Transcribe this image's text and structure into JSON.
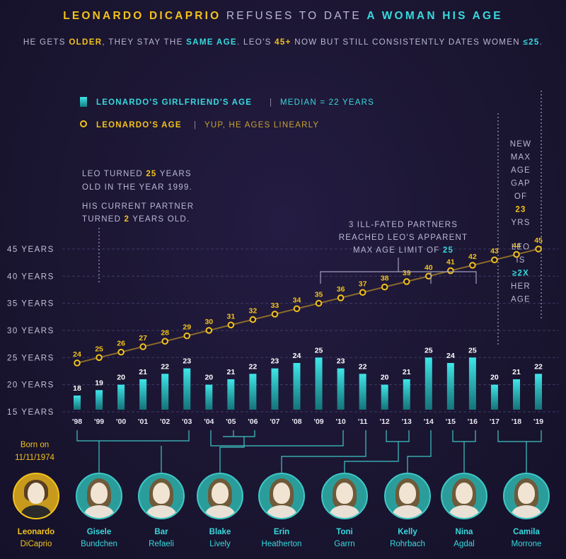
{
  "title": {
    "part1": "LEONARDO DICAPRIO",
    "part2": "REFUSES TO DATE",
    "part3": "A WOMAN HIS AGE"
  },
  "subtitle": {
    "a": "HE GETS ",
    "b": "OLDER",
    "c": ", THEY STAY THE ",
    "d": "SAME AGE",
    "e": ". LEO'S ",
    "f": "45+",
    "g": " NOW BUT STILL CONSISTENTLY DATES WOMEN ",
    "h": "≤25",
    "i": "."
  },
  "legend": {
    "gf_label": "LEONARDO'S GIRLFRIEND'S AGE",
    "gf_note": "MEDIAN = 22 YEARS",
    "leo_label": "LEONARDO'S AGE",
    "leo_note": "YUP, HE AGES LINEARLY",
    "sep": "|"
  },
  "notes": {
    "left_l1a": "LEO TURNED ",
    "left_l1b": "25",
    "left_l1c": " YEARS",
    "left_l2": "OLD IN THE YEAR 1999.",
    "left_l3": "HIS CURRENT PARTNER",
    "left_l4a": "TURNED ",
    "left_l4b": "2",
    "left_l4c": " YEARS OLD.",
    "mid_l1": "3 ILL-FATED PARTNERS",
    "mid_l2": "REACHED LEO'S APPARENT",
    "mid_l3a": "MAX AGE LIMIT OF ",
    "mid_l3b": "25",
    "right": [
      "NEW",
      "MAX",
      "AGE",
      "GAP",
      "OF"
    ],
    "right_num": "23",
    "right_yrs": "YRS",
    "right2": [
      "LEO",
      "IS"
    ],
    "right2_hl": "≥2X",
    "right2_end": [
      "HER",
      "AGE"
    ]
  },
  "people": [
    {
      "first": "Leonardo",
      "last": "DiCaprio",
      "icon": "leonardo-portrait"
    },
    {
      "first": "Gisele",
      "last": "Bundchen",
      "icon": "gisele-portrait"
    },
    {
      "first": "Bar",
      "last": "Refaeli",
      "icon": "bar-portrait"
    },
    {
      "first": "Blake",
      "last": "Lively",
      "icon": "blake-portrait"
    },
    {
      "first": "Erin",
      "last": "Heatherton",
      "icon": "erin-portrait"
    },
    {
      "first": "Toni",
      "last": "Garrn",
      "icon": "toni-portrait"
    },
    {
      "first": "Kelly",
      "last": "Rohrbach",
      "icon": "kelly-portrait"
    },
    {
      "first": "Nina",
      "last": "Agdal",
      "icon": "nina-portrait"
    },
    {
      "first": "Camila",
      "last": "Morrone",
      "icon": "camila-portrait"
    }
  ],
  "born": {
    "l1": "Born on",
    "l2": "11/11/1974"
  },
  "colors": {
    "gold": "#f2c21b",
    "cyan": "#37d9dd",
    "bg": "#1a1530"
  },
  "chart_data": {
    "type": "bar",
    "title": "LEONARDO DICAPRIO REFUSES TO DATE A WOMAN HIS AGE",
    "categories": [
      "'98",
      "'99",
      "'00",
      "'01",
      "'02",
      "'03",
      "'04",
      "'05",
      "'06",
      "'07",
      "'08",
      "'09",
      "'10",
      "'11",
      "'12",
      "'13",
      "'14",
      "'15",
      "'16",
      "'17",
      "'18",
      "'19"
    ],
    "series": [
      {
        "name": "LEONARDO'S GIRLFRIEND'S AGE",
        "type": "bar",
        "values": [
          18,
          19,
          20,
          21,
          22,
          23,
          20,
          21,
          22,
          23,
          24,
          25,
          23,
          22,
          20,
          21,
          25,
          24,
          25,
          20,
          21,
          22
        ]
      },
      {
        "name": "LEONARDO'S AGE",
        "type": "line",
        "values": [
          24,
          25,
          26,
          27,
          28,
          29,
          30,
          31,
          32,
          33,
          34,
          35,
          36,
          37,
          38,
          39,
          40,
          41,
          42,
          43,
          44,
          45
        ]
      }
    ],
    "yticks": [
      "15 YEARS",
      "20 YEARS",
      "25 YEARS",
      "30 YEARS",
      "35 YEARS",
      "40 YEARS",
      "45 YEARS"
    ],
    "ytick_values": [
      15,
      20,
      25,
      30,
      35,
      40,
      45
    ],
    "ylim": [
      15,
      45
    ],
    "grid": true
  }
}
